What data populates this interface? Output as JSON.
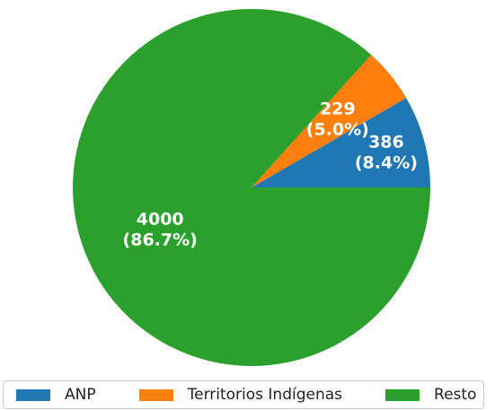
{
  "chart_data": {
    "type": "pie",
    "categories": [
      "ANP",
      "Territorios Indígenas",
      "Resto"
    ],
    "values": [
      386,
      229,
      4000
    ],
    "percent_labels": [
      "(8.4%)",
      "(5.0%)",
      "(86.7%)"
    ],
    "colors": [
      "#1f77b4",
      "#ff7f0e",
      "#2ca02c"
    ],
    "start_angle_deg": 0,
    "direction": "counterclockwise",
    "legend": "bottom"
  }
}
